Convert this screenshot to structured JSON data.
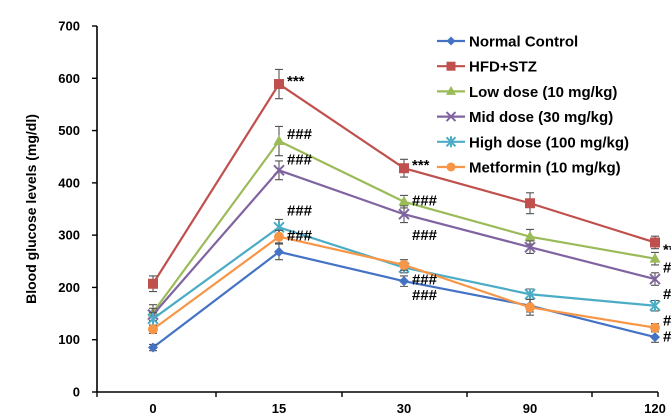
{
  "chart_data": {
    "type": "line",
    "title": "",
    "xlabel": "",
    "ylabel": "Blood glucose levels (mg/dl)",
    "categories": [
      "0",
      "15",
      "30",
      "90",
      "120"
    ],
    "ylim": [
      0,
      700
    ],
    "yticks": [
      0,
      100,
      200,
      300,
      400,
      500,
      600,
      700
    ],
    "grid": false,
    "legend_position": "top-right",
    "series": [
      {
        "name": "Normal Control",
        "color": "#4472c4",
        "marker": "diamond",
        "values": [
          85,
          268,
          212,
          165,
          105
        ],
        "errors": [
          6,
          15,
          10,
          12,
          10
        ],
        "annotations": [
          "",
          "",
          "",
          "",
          ""
        ]
      },
      {
        "name": "HFD+STZ",
        "color": "#c0504d",
        "marker": "square",
        "values": [
          207,
          589,
          428,
          361,
          286
        ],
        "errors": [
          15,
          28,
          17,
          20,
          12
        ],
        "annotations": [
          "",
          "***",
          "***",
          "",
          "***"
        ]
      },
      {
        "name": "Low dose (10 mg/kg)",
        "color": "#9bbb59",
        "marker": "triangle",
        "values": [
          152,
          480,
          364,
          297,
          255
        ],
        "errors": [
          15,
          28,
          12,
          14,
          12
        ],
        "annotations": [
          "",
          "###",
          "###",
          "",
          "##"
        ]
      },
      {
        "name": "Mid dose (30 mg/kg)",
        "color": "#8064a2",
        "marker": "x",
        "values": [
          148,
          424,
          340,
          277,
          216
        ],
        "errors": [
          12,
          18,
          16,
          12,
          12
        ],
        "annotations": [
          "",
          "###",
          "###",
          "",
          "###"
        ]
      },
      {
        "name": "High dose (100 mg/kg)",
        "color": "#4bacc6",
        "marker": "star",
        "values": [
          140,
          315,
          238,
          187,
          165
        ],
        "errors": [
          12,
          15,
          10,
          10,
          10
        ],
        "annotations": [
          "",
          "###",
          "###",
          "",
          "###"
        ]
      },
      {
        "name": "Metformin (10 mg/kg)",
        "color": "#f79646",
        "marker": "circle",
        "values": [
          120,
          297,
          243,
          162,
          123
        ],
        "errors": [
          8,
          12,
          10,
          15,
          8
        ],
        "annotations": [
          "",
          "###",
          "###",
          "",
          "###"
        ]
      }
    ]
  }
}
